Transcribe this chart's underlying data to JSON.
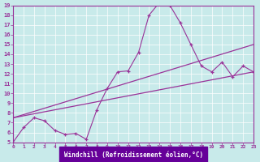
{
  "bg_color": "#c8eaea",
  "line_color": "#993399",
  "xlabel": "Windchill (Refroidissement éolien,°C)",
  "xlabel_bg": "#660099",
  "xlim": [
    0,
    23
  ],
  "ylim": [
    5,
    19
  ],
  "xticks": [
    0,
    1,
    2,
    3,
    4,
    5,
    6,
    7,
    8,
    9,
    10,
    11,
    12,
    13,
    14,
    15,
    16,
    17,
    18,
    19,
    20,
    21,
    22,
    23
  ],
  "yticks": [
    5,
    6,
    7,
    8,
    9,
    10,
    11,
    12,
    13,
    14,
    15,
    16,
    17,
    18,
    19
  ],
  "line1_x": [
    0,
    1,
    2,
    3,
    4,
    5,
    6,
    7,
    8,
    9,
    10,
    11,
    12,
    13,
    14,
    15,
    16,
    17,
    18,
    19,
    20,
    21,
    22,
    23
  ],
  "line1_y": [
    5.0,
    6.5,
    7.5,
    7.2,
    6.2,
    5.8,
    5.9,
    5.3,
    8.3,
    10.5,
    12.2,
    12.3,
    14.2,
    18.0,
    19.3,
    19.0,
    17.2,
    15.0,
    12.8,
    12.2,
    13.2,
    11.7,
    12.8,
    12.2
  ],
  "line2_x": [
    0,
    23
  ],
  "line2_y": [
    7.5,
    15.0
  ],
  "line3_x": [
    0,
    23
  ],
  "line3_y": [
    7.5,
    12.2
  ]
}
